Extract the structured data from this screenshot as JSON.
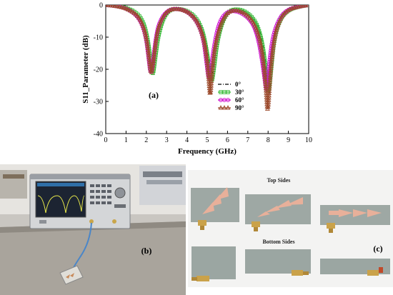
{
  "chart_data": {
    "type": "line",
    "title": "",
    "panel_label": "(a)",
    "xlabel": "Frequency (GHz)",
    "ylabel": "S11_Parameter (dB)",
    "xlim": [
      0,
      10
    ],
    "ylim": [
      -40,
      0
    ],
    "x_ticks": [
      0,
      1,
      2,
      3,
      4,
      5,
      6,
      7,
      8,
      9,
      10
    ],
    "y_ticks": [
      0,
      -10,
      -20,
      -30,
      -40
    ],
    "grid": false,
    "legend_position": "right-center",
    "series": [
      {
        "name": "0°",
        "color": "#000000",
        "marker": "dash-dot",
        "points": [
          [
            0,
            0
          ],
          [
            0.5,
            -0.2
          ],
          [
            1,
            -0.8
          ],
          [
            1.5,
            -2.5
          ],
          [
            1.8,
            -5
          ],
          [
            2,
            -9
          ],
          [
            2.15,
            -15
          ],
          [
            2.25,
            -20
          ],
          [
            2.35,
            -20.5
          ],
          [
            2.45,
            -15
          ],
          [
            2.6,
            -8
          ],
          [
            2.9,
            -3
          ],
          [
            3.3,
            -1
          ],
          [
            4,
            -1.5
          ],
          [
            4.5,
            -4
          ],
          [
            4.8,
            -8
          ],
          [
            5,
            -14
          ],
          [
            5.15,
            -20
          ],
          [
            5.25,
            -22
          ],
          [
            5.35,
            -18
          ],
          [
            5.5,
            -11
          ],
          [
            5.8,
            -4
          ],
          [
            6.2,
            -1.2
          ],
          [
            6.8,
            -1.5
          ],
          [
            7.3,
            -4
          ],
          [
            7.6,
            -8
          ],
          [
            7.8,
            -14
          ],
          [
            7.95,
            -22
          ],
          [
            8.05,
            -30
          ],
          [
            8.15,
            -20
          ],
          [
            8.3,
            -10
          ],
          [
            8.6,
            -4
          ],
          [
            9,
            -1.5
          ],
          [
            9.5,
            -0.5
          ],
          [
            10,
            0
          ]
        ]
      },
      {
        "name": "30°",
        "color": "#3cbc3c",
        "marker": "square",
        "points": [
          [
            0,
            0
          ],
          [
            0.5,
            -0.2
          ],
          [
            1,
            -0.8
          ],
          [
            1.5,
            -2.3
          ],
          [
            1.8,
            -4.6
          ],
          [
            2,
            -8.5
          ],
          [
            2.15,
            -14
          ],
          [
            2.25,
            -20
          ],
          [
            2.33,
            -22
          ],
          [
            2.45,
            -16
          ],
          [
            2.6,
            -9
          ],
          [
            2.9,
            -3
          ],
          [
            3.3,
            -1
          ],
          [
            4,
            -1.6
          ],
          [
            4.5,
            -4.2
          ],
          [
            4.8,
            -8.5
          ],
          [
            5,
            -15
          ],
          [
            5.15,
            -22
          ],
          [
            5.22,
            -24.5
          ],
          [
            5.35,
            -19
          ],
          [
            5.5,
            -11
          ],
          [
            5.8,
            -4
          ],
          [
            6.2,
            -1.2
          ],
          [
            6.8,
            -1.6
          ],
          [
            7.3,
            -4.2
          ],
          [
            7.6,
            -8.5
          ],
          [
            7.8,
            -15
          ],
          [
            7.95,
            -24
          ],
          [
            8.02,
            -28
          ],
          [
            8.15,
            -20
          ],
          [
            8.3,
            -10
          ],
          [
            8.6,
            -4
          ],
          [
            9,
            -1.5
          ],
          [
            9.5,
            -0.5
          ],
          [
            10,
            0
          ]
        ]
      },
      {
        "name": "60°",
        "color": "#d010d0",
        "marker": "circle",
        "points": [
          [
            0,
            0
          ],
          [
            0.5,
            -0.3
          ],
          [
            1,
            -1
          ],
          [
            1.5,
            -3
          ],
          [
            1.8,
            -6
          ],
          [
            2,
            -10.5
          ],
          [
            2.12,
            -17
          ],
          [
            2.22,
            -22
          ],
          [
            2.32,
            -18
          ],
          [
            2.45,
            -11
          ],
          [
            2.6,
            -6
          ],
          [
            2.9,
            -2.5
          ],
          [
            3.3,
            -1
          ],
          [
            4,
            -1.8
          ],
          [
            4.5,
            -5
          ],
          [
            4.8,
            -10
          ],
          [
            4.95,
            -17
          ],
          [
            5.08,
            -24
          ],
          [
            5.18,
            -20
          ],
          [
            5.35,
            -12
          ],
          [
            5.6,
            -5
          ],
          [
            6,
            -1.8
          ],
          [
            6.6,
            -2
          ],
          [
            7.2,
            -5
          ],
          [
            7.5,
            -10
          ],
          [
            7.7,
            -17
          ],
          [
            7.85,
            -24
          ],
          [
            7.92,
            -27.5
          ],
          [
            8.05,
            -18
          ],
          [
            8.25,
            -9
          ],
          [
            8.6,
            -3.5
          ],
          [
            9,
            -1.3
          ],
          [
            9.5,
            -0.5
          ],
          [
            10,
            0
          ]
        ]
      },
      {
        "name": "90°",
        "color": "#9c4a2c",
        "marker": "triangle",
        "points": [
          [
            0,
            0
          ],
          [
            0.5,
            -0.3
          ],
          [
            1,
            -1
          ],
          [
            1.5,
            -2.8
          ],
          [
            1.8,
            -5.5
          ],
          [
            2,
            -10
          ],
          [
            2.13,
            -16
          ],
          [
            2.23,
            -22
          ],
          [
            2.33,
            -19
          ],
          [
            2.45,
            -12
          ],
          [
            2.6,
            -6.5
          ],
          [
            2.9,
            -2.6
          ],
          [
            3.3,
            -1
          ],
          [
            4,
            -1.7
          ],
          [
            4.5,
            -4.8
          ],
          [
            4.8,
            -9.5
          ],
          [
            4.98,
            -16
          ],
          [
            5.1,
            -25
          ],
          [
            5.15,
            -29
          ],
          [
            5.25,
            -20
          ],
          [
            5.4,
            -12
          ],
          [
            5.7,
            -5
          ],
          [
            6.1,
            -1.6
          ],
          [
            6.7,
            -1.8
          ],
          [
            7.25,
            -4.8
          ],
          [
            7.55,
            -9.5
          ],
          [
            7.75,
            -16
          ],
          [
            7.9,
            -26
          ],
          [
            7.98,
            -35
          ],
          [
            8.1,
            -22
          ],
          [
            8.3,
            -10
          ],
          [
            8.6,
            -4
          ],
          [
            9,
            -1.4
          ],
          [
            9.5,
            -0.5
          ],
          [
            10,
            0
          ]
        ]
      }
    ]
  },
  "photos": {
    "b_label": "(b)",
    "c_label": "(c)",
    "top_sides": "Top Sides",
    "bottom_sides": "Bottom Sides"
  }
}
